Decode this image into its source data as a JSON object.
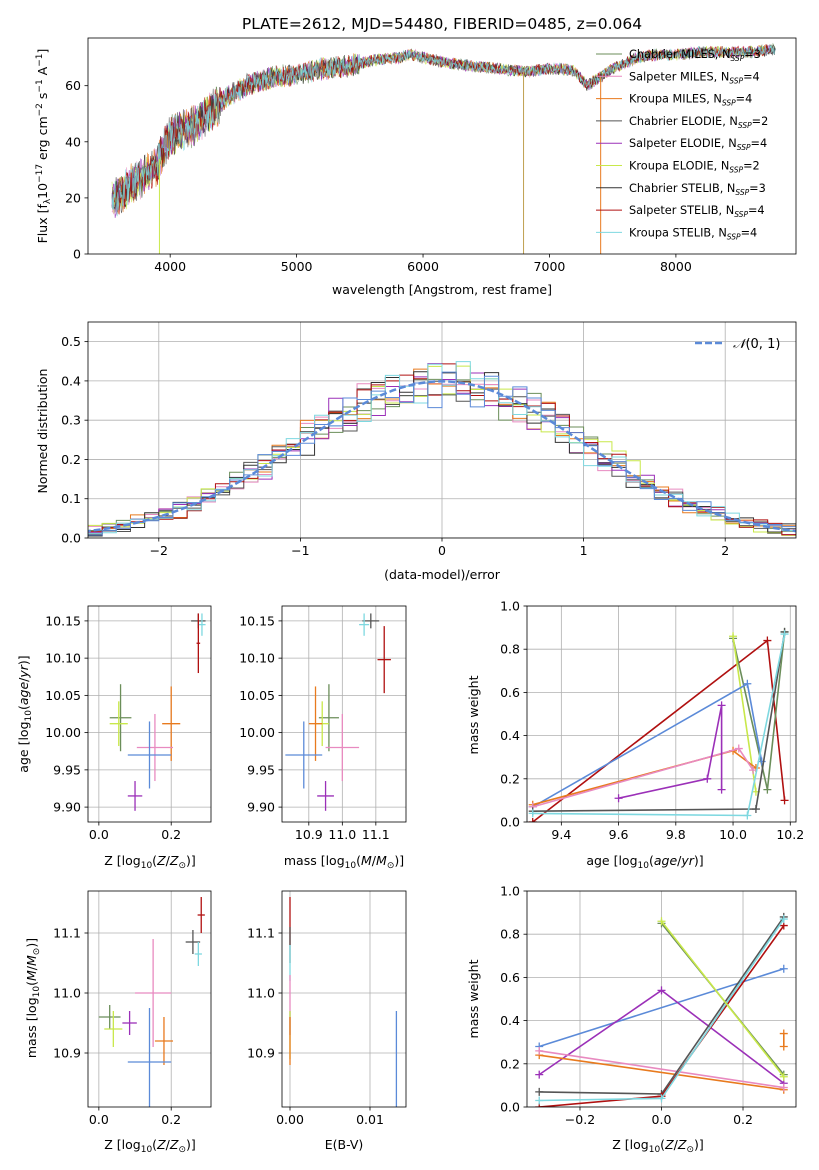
{
  "figure_title": "PLATE=2612, MJD=54480, FIBERID=0485, z=0.064",
  "chart_data": [
    {
      "id": "spectrum",
      "type": "line",
      "title": "PLATE=2612, MJD=54480, FIBERID=0485, z=0.064",
      "xlabel": "wavelength [Angstrom, rest frame]",
      "ylabel": "Flux [fλ10⁻¹⁷ erg cm⁻² s⁻¹ A⁻¹]",
      "xlim": [
        3350,
        8950
      ],
      "ylim": [
        0,
        77
      ],
      "xticks": [
        4000,
        5000,
        6000,
        7000,
        8000
      ],
      "yticks": [
        0,
        20,
        40,
        60
      ],
      "grid": false,
      "legend_position": "top-right",
      "continuum_x": [
        3540,
        3700,
        3850,
        3900,
        3950,
        4000,
        4100,
        4200,
        4300,
        4350,
        4450,
        4600,
        4800,
        5000,
        5200,
        5400,
        5600,
        5800,
        5900,
        6000,
        6200,
        6400,
        6600,
        6800,
        7000,
        7100,
        7200,
        7300,
        7400,
        7500,
        7600,
        7700,
        7800,
        8000,
        8200,
        8400,
        8600,
        8800
      ],
      "continuum_y": [
        19,
        25,
        30,
        32,
        38,
        42,
        44,
        46,
        50,
        52,
        56,
        60,
        63,
        64,
        66,
        67,
        69,
        70,
        71,
        70,
        68,
        67,
        66,
        65,
        66,
        66,
        65,
        60,
        63,
        66,
        68,
        70,
        71,
        71,
        72,
        72,
        72,
        73
      ],
      "series": [
        {
          "name": "Chabrier MILES, N_SSP=3",
          "color": "#6b8e5a"
        },
        {
          "name": "Salpeter MILES, N_SSP=4",
          "color": "#e88ac0"
        },
        {
          "name": "Kroupa MILES, N_SSP=4",
          "color": "#e87a1e"
        },
        {
          "name": "Chabrier ELODIE, N_SSP=2",
          "color": "#555555"
        },
        {
          "name": "Salpeter ELODIE, N_SSP=4",
          "color": "#9b30b8"
        },
        {
          "name": "Kroupa ELODIE, N_SSP=2",
          "color": "#c8e84a"
        },
        {
          "name": "Chabrier STELIB, N_SSP=3",
          "color": "#333333"
        },
        {
          "name": "Salpeter STELIB, N_SSP=4",
          "color": "#b01010"
        },
        {
          "name": "Kroupa STELIB, N_SSP=4",
          "color": "#7ed8e0"
        }
      ],
      "legend": [
        {
          "main": "Chabrier MILES, N",
          "sub": "SSP",
          "tail": "=3",
          "color": "#6b8e5a"
        },
        {
          "main": "Salpeter MILES, N",
          "sub": "SSP",
          "tail": "=4",
          "color": "#e88ac0"
        },
        {
          "main": "Kroupa MILES, N",
          "sub": "SSP",
          "tail": "=4",
          "color": "#e87a1e"
        },
        {
          "main": "Chabrier ELODIE, N",
          "sub": "SSP",
          "tail": "=2",
          "color": "#555555"
        },
        {
          "main": "Salpeter ELODIE, N",
          "sub": "SSP",
          "tail": "=4",
          "color": "#9b30b8"
        },
        {
          "main": "Kroupa ELODIE, N",
          "sub": "SSP",
          "tail": "=2",
          "color": "#c8e84a"
        },
        {
          "main": "Chabrier STELIB, N",
          "sub": "SSP",
          "tail": "=3",
          "color": "#333333"
        },
        {
          "main": "Salpeter STELIB, N",
          "sub": "SSP",
          "tail": "=4",
          "color": "#b01010"
        },
        {
          "main": "Kroupa STELIB, N",
          "sub": "SSP",
          "tail": "=4",
          "color": "#7ed8e0"
        }
      ],
      "drop_lines": [
        {
          "x": 3915,
          "color": "#c8e84a"
        },
        {
          "x": 6795,
          "color": "#c0a050"
        },
        {
          "x": 7405,
          "color": "#e87a1e"
        }
      ]
    },
    {
      "id": "residuals",
      "type": "histogram",
      "xlabel": "(data-model)/error",
      "ylabel": "Normed distribution",
      "xlim": [
        -2.5,
        2.5
      ],
      "ylim": [
        0,
        0.55
      ],
      "xticks": [
        -2,
        -1,
        0,
        1,
        2
      ],
      "yticks": [
        0.0,
        0.1,
        0.2,
        0.3,
        0.4,
        0.5
      ],
      "grid": true,
      "bin_width": 0.1,
      "legend_position": "top-right",
      "gaussian": {
        "name": "N(0,1)",
        "mu": 0,
        "sigma": 1,
        "color": "#5b8ad8"
      },
      "gaussian_label": {
        "script": "𝒩",
        "args": "(0, 1)"
      }
    },
    {
      "id": "age_vs_Z",
      "type": "errorbar",
      "xlabel": "Z [log10(Z/Z⊙)]",
      "ylabel": "age  [log10(age/yr)]",
      "xlim": [
        -0.03,
        0.31
      ],
      "ylim": [
        9.88,
        10.17
      ],
      "xticks": [
        0.0,
        0.2
      ],
      "yticks": [
        9.9,
        9.95,
        10.0,
        10.05,
        10.1,
        10.15
      ],
      "grid": true,
      "points": [
        {
          "x": 0.06,
          "xerr": 0.03,
          "y": 10.02,
          "yerr": 0.045,
          "color": "#6b8e5a"
        },
        {
          "x": 0.055,
          "xerr": 0.025,
          "y": 10.012,
          "yerr": 0.03,
          "color": "#c8e84a"
        },
        {
          "x": 0.2,
          "xerr": 0.025,
          "y": 10.012,
          "yerr": 0.05,
          "color": "#e87a1e"
        },
        {
          "x": 0.155,
          "xerr": 0.05,
          "y": 9.98,
          "yerr": 0.045,
          "color": "#e88ac0"
        },
        {
          "x": 0.14,
          "xerr": 0.06,
          "y": 9.97,
          "yerr": 0.045,
          "color": "#5b8ad8"
        },
        {
          "x": 0.1,
          "xerr": 0.02,
          "y": 9.915,
          "yerr": 0.02,
          "color": "#9b30b8"
        },
        {
          "x": 0.275,
          "xerr": 0.02,
          "y": 10.15,
          "yerr": 0.01,
          "color": "#555555"
        },
        {
          "x": 0.285,
          "xerr": 0.01,
          "y": 10.145,
          "yerr": 0.015,
          "color": "#7ed8e0"
        },
        {
          "x": 0.275,
          "xerr": 0.005,
          "y": 10.12,
          "yerr": 0.04,
          "color": "#b01010"
        }
      ]
    },
    {
      "id": "age_vs_mass",
      "type": "errorbar",
      "xlabel": "mass [log10(M/M⊙)]",
      "ylabel": "",
      "xlim": [
        10.82,
        11.19
      ],
      "ylim": [
        9.88,
        10.17
      ],
      "xticks": [
        10.9,
        11.0,
        11.1
      ],
      "yticks": [
        9.9,
        9.95,
        10.0,
        10.05,
        10.1,
        10.15
      ],
      "grid": true,
      "points": [
        {
          "x": 10.96,
          "xerr": 0.03,
          "y": 10.02,
          "yerr": 0.045,
          "color": "#6b8e5a"
        },
        {
          "x": 10.94,
          "xerr": 0.02,
          "y": 10.012,
          "yerr": 0.03,
          "color": "#c8e84a"
        },
        {
          "x": 10.92,
          "xerr": 0.02,
          "y": 10.012,
          "yerr": 0.05,
          "color": "#e87a1e"
        },
        {
          "x": 11.0,
          "xerr": 0.05,
          "y": 9.98,
          "yerr": 0.045,
          "color": "#e88ac0"
        },
        {
          "x": 10.885,
          "xerr": 0.055,
          "y": 9.97,
          "yerr": 0.045,
          "color": "#5b8ad8"
        },
        {
          "x": 10.95,
          "xerr": 0.025,
          "y": 9.915,
          "yerr": 0.02,
          "color": "#9b30b8"
        },
        {
          "x": 11.085,
          "xerr": 0.025,
          "y": 10.15,
          "yerr": 0.01,
          "color": "#555555"
        },
        {
          "x": 11.065,
          "xerr": 0.015,
          "y": 10.145,
          "yerr": 0.015,
          "color": "#7ed8e0"
        },
        {
          "x": 11.125,
          "xerr": 0.02,
          "y": 10.098,
          "yerr": 0.045,
          "color": "#b01010"
        }
      ]
    },
    {
      "id": "weight_vs_age",
      "type": "line",
      "xlabel": "age  [log10(age/yr)]",
      "ylabel": "mass weight",
      "xlim": [
        9.28,
        10.22
      ],
      "ylim": [
        0,
        1
      ],
      "xticks": [
        9.4,
        9.6,
        9.8,
        10.0,
        10.2
      ],
      "yticks": [
        0.0,
        0.2,
        0.4,
        0.6,
        0.8,
        1.0
      ],
      "grid": true,
      "series": [
        {
          "color": "#b01010",
          "x": [
            9.3,
            10.12,
            10.18
          ],
          "y": [
            0.0,
            0.84,
            0.1
          ]
        },
        {
          "color": "#6b8e5a",
          "x": [
            10.0,
            10.12,
            10.18
          ],
          "y": [
            0.85,
            0.15,
            0.88
          ]
        },
        {
          "color": "#c8e84a",
          "x": [
            10.0,
            10.08
          ],
          "y": [
            0.86,
            0.14
          ]
        },
        {
          "color": "#5b8ad8",
          "x": [
            9.3,
            10.05,
            10.1
          ],
          "y": [
            0.07,
            0.64,
            0.28
          ]
        },
        {
          "color": "#e87a1e",
          "x": [
            9.3,
            10.0,
            10.08
          ],
          "y": [
            0.08,
            0.33,
            0.25
          ]
        },
        {
          "color": "#e88ac0",
          "x": [
            9.3,
            10.02,
            10.07
          ],
          "y": [
            0.07,
            0.34,
            0.24
          ]
        },
        {
          "color": "#9b30b8",
          "x": [
            9.6,
            9.91,
            9.96,
            9.96
          ],
          "y": [
            0.11,
            0.2,
            0.54,
            0.15
          ]
        },
        {
          "color": "#555555",
          "x": [
            9.3,
            10.08,
            10.18
          ],
          "y": [
            0.05,
            0.06,
            0.88
          ]
        },
        {
          "color": "#7ed8e0",
          "x": [
            9.3,
            10.05,
            10.18
          ],
          "y": [
            0.04,
            0.03,
            0.87
          ]
        }
      ]
    },
    {
      "id": "mass_vs_Z",
      "type": "errorbar",
      "xlabel": "Z [log10(Z/Z⊙)]",
      "ylabel": "mass [log10(M/M⊙)]",
      "xlim": [
        -0.03,
        0.31
      ],
      "ylim": [
        10.81,
        11.17
      ],
      "xticks": [
        0.0,
        0.2
      ],
      "yticks": [
        10.9,
        11.0,
        11.1
      ],
      "grid": true,
      "points": [
        {
          "x": 0.03,
          "xerr": 0.03,
          "y": 10.96,
          "yerr": 0.02,
          "color": "#6b8e5a"
        },
        {
          "x": 0.04,
          "xerr": 0.025,
          "y": 10.94,
          "yerr": 0.03,
          "color": "#c8e84a"
        },
        {
          "x": 0.085,
          "xerr": 0.02,
          "y": 10.95,
          "yerr": 0.02,
          "color": "#9b30b8"
        },
        {
          "x": 0.15,
          "xerr": 0.05,
          "y": 11.0,
          "yerr": 0.09,
          "color": "#e88ac0"
        },
        {
          "x": 0.18,
          "xerr": 0.025,
          "y": 10.92,
          "yerr": 0.04,
          "color": "#e87a1e"
        },
        {
          "x": 0.14,
          "xerr": 0.06,
          "y": 10.885,
          "yerr": 0.09,
          "color": "#5b8ad8"
        },
        {
          "x": 0.26,
          "xerr": 0.02,
          "y": 11.085,
          "yerr": 0.02,
          "color": "#555555"
        },
        {
          "x": 0.275,
          "xerr": 0.01,
          "y": 11.065,
          "yerr": 0.02,
          "color": "#7ed8e0"
        },
        {
          "x": 0.283,
          "xerr": 0.01,
          "y": 11.13,
          "yerr": 0.03,
          "color": "#b01010"
        }
      ]
    },
    {
      "id": "mass_vs_ebv",
      "type": "errorbar",
      "xlabel": "E(B-V)",
      "ylabel": "",
      "xlim": [
        -0.001,
        0.0145
      ],
      "ylim": [
        10.81,
        11.17
      ],
      "xticks": [
        0.0,
        0.01
      ],
      "yticks": [
        10.9,
        11.0,
        11.1
      ],
      "grid": true,
      "points": [
        {
          "x": 0.0,
          "xerr": 0,
          "y": 11.12,
          "yerr": 0.04,
          "color": "#b01010"
        },
        {
          "x": 0.0,
          "xerr": 0,
          "y": 11.08,
          "yerr": 0.03,
          "color": "#555555"
        },
        {
          "x": 0.0,
          "xerr": 0,
          "y": 11.05,
          "yerr": 0.03,
          "color": "#7ed8e0"
        },
        {
          "x": 0.0,
          "xerr": 0,
          "y": 11.0,
          "yerr": 0.03,
          "color": "#e88ac0"
        },
        {
          "x": 0.0,
          "xerr": 0,
          "y": 10.95,
          "yerr": 0.02,
          "color": "#9b30b8"
        },
        {
          "x": 0.0,
          "xerr": 0,
          "y": 10.93,
          "yerr": 0.04,
          "color": "#c8e84a"
        },
        {
          "x": 0.0,
          "xerr": 0,
          "y": 10.92,
          "yerr": 0.04,
          "color": "#e87a1e"
        },
        {
          "x": 0.0133,
          "xerr": 0,
          "y": 10.89,
          "yerr": 0.08,
          "color": "#5b8ad8"
        }
      ]
    },
    {
      "id": "weight_vs_Z",
      "type": "line",
      "xlabel": "Z [log10(Z/Z⊙)]",
      "ylabel": "mass weight",
      "xlim": [
        -0.33,
        0.33
      ],
      "ylim": [
        0,
        1
      ],
      "xticks": [
        -0.2,
        0.0,
        0.2
      ],
      "yticks": [
        0.0,
        0.2,
        0.4,
        0.6,
        0.8,
        1.0
      ],
      "grid": true,
      "series": [
        {
          "color": "#5b8ad8",
          "x": [
            -0.3,
            0.3
          ],
          "y": [
            0.28,
            0.64
          ]
        },
        {
          "color": "#9b30b8",
          "x": [
            -0.3,
            0.0,
            0.3
          ],
          "y": [
            0.15,
            0.54,
            0.11
          ]
        },
        {
          "color": "#e87a1e",
          "x": [
            -0.3,
            0.3
          ],
          "y": [
            0.24,
            0.08
          ]
        },
        {
          "color": "#e88ac0",
          "x": [
            -0.3,
            0.3
          ],
          "y": [
            0.26,
            0.09
          ]
        },
        {
          "color": "#555555",
          "x": [
            -0.3,
            0.0,
            0.3
          ],
          "y": [
            0.07,
            0.06,
            0.88
          ]
        },
        {
          "color": "#b01010",
          "x": [
            -0.3,
            0.0,
            0.3
          ],
          "y": [
            0.0,
            0.05,
            0.84
          ]
        },
        {
          "color": "#7ed8e0",
          "x": [
            -0.3,
            0.0,
            0.3
          ],
          "y": [
            0.03,
            0.04,
            0.87
          ]
        },
        {
          "color": "#6b8e5a",
          "x": [
            0.0,
            0.3
          ],
          "y": [
            0.85,
            0.15
          ]
        },
        {
          "color": "#c8e84a",
          "x": [
            0.0,
            0.3
          ],
          "y": [
            0.86,
            0.14
          ]
        },
        {
          "color": "#e87a1e",
          "x": [
            0.3,
            0.3
          ],
          "y": [
            0.34,
            0.28
          ]
        }
      ]
    }
  ]
}
